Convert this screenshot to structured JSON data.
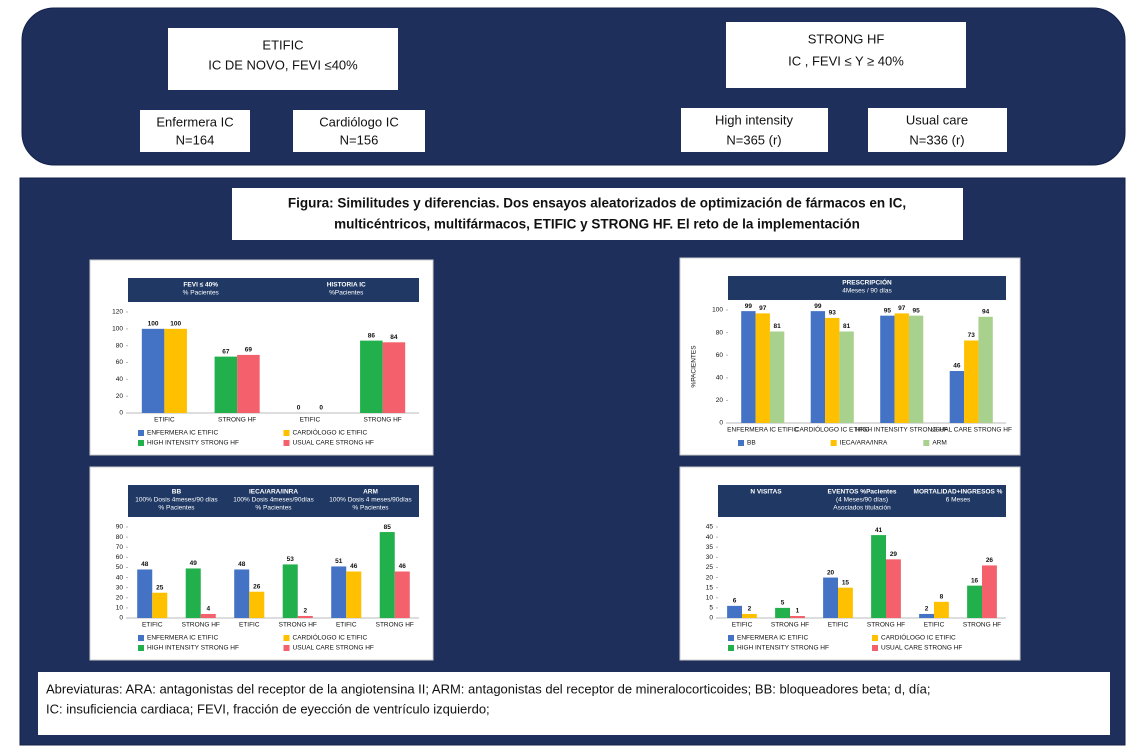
{
  "header": {
    "etific": {
      "title": "ETIFIC",
      "subtitle": "IC DE NOVO, FEVI ≤40%"
    },
    "etific_arms": [
      {
        "name": "Enfermera IC",
        "n": "N=164"
      },
      {
        "name": "Cardiólogo IC",
        "n": "N=156"
      }
    ],
    "strong": {
      "title": "STRONG HF",
      "subtitle": "IC , FEVI ≤ Y ≥ 40%"
    },
    "strong_arms": [
      {
        "name": "High intensity",
        "n": "N=365 (r)"
      },
      {
        "name": "Usual care",
        "n": "N=336 (r)"
      }
    ]
  },
  "caption": [
    "Figura: Similitudes y diferencias. Dos ensayos aleatorizados de optimización de fármacos en IC,",
    "multicéntricos, multifármacos, ETIFIC y STRONG HF.  El reto de la implementación"
  ],
  "chart_data": [
    {
      "type": "bar",
      "panels": [
        {
          "lines": [
            "FEVI ≤ 40%",
            "% Pacientes"
          ]
        },
        {
          "lines": [
            "HISTORIA IC",
            "%Pacientes"
          ]
        }
      ],
      "categories": [
        "ETIFIC",
        "STRONG HF",
        "ETIFIC",
        "STRONG HF"
      ],
      "series": [
        {
          "name": "ENFERMERA IC ETIFIC",
          "color": "#4472c4",
          "values": [
            100,
            null,
            0,
            null
          ]
        },
        {
          "name": "CARDIÓLOGO IC ETIFIC",
          "color": "#ffc000",
          "values": [
            100,
            null,
            0,
            null
          ]
        },
        {
          "name": "HIGH INTENSITY STRONG HF",
          "color": "#22b04c",
          "values": [
            null,
            67,
            null,
            86
          ]
        },
        {
          "name": "USUAL CARE STRONG HF",
          "color": "#f4606c",
          "values": [
            null,
            69,
            null,
            84
          ]
        }
      ],
      "ylim": [
        0,
        120
      ],
      "yticks": [
        0,
        20,
        40,
        60,
        80,
        100,
        120
      ]
    },
    {
      "type": "bar",
      "panels": [
        {
          "lines": [
            "PRESCRIPCIÓN",
            "4Meses / 90 días"
          ]
        }
      ],
      "y_label": "%PACIENTES",
      "categories": [
        "ENFERMERA IC ETIFIC",
        "CARDIÓLOGO IC ETIFIC",
        "HIGH INTENSITY STRONG HF",
        "USUAL CARE STRONG HF"
      ],
      "series": [
        {
          "name": "BB",
          "color": "#4472c4",
          "values": [
            99,
            99,
            95,
            46
          ]
        },
        {
          "name": "IECA/ARA/INRA",
          "color": "#ffc000",
          "values": [
            97,
            93,
            97,
            73
          ]
        },
        {
          "name": "ARM",
          "color": "#a9d18e",
          "values": [
            81,
            81,
            95,
            94
          ]
        }
      ],
      "ylim": [
        0,
        100
      ],
      "yticks": [
        0,
        20,
        40,
        60,
        80,
        100
      ]
    },
    {
      "type": "bar",
      "panels": [
        {
          "lines": [
            "BB",
            "100% Dosis 4meses/90 días",
            "% Pacientes"
          ]
        },
        {
          "lines": [
            "IECA/ARA/INRA",
            "100% Dosis 4meses/90días",
            "% Pacientes"
          ]
        },
        {
          "lines": [
            "ARM",
            "100% Dosis 4 meses/90días",
            "% Pacientes"
          ]
        }
      ],
      "categories": [
        "ETIFIC",
        "STRONG HF",
        "ETIFIC",
        "STRONG HF",
        "ETIFIC",
        "STRONG HF"
      ],
      "series": [
        {
          "name": "ENFERMERA IC ETIFIC",
          "color": "#4472c4",
          "values": [
            48,
            null,
            48,
            null,
            51,
            null
          ]
        },
        {
          "name": "CARDIÓLOGO IC ETIFIC",
          "color": "#ffc000",
          "values": [
            25,
            null,
            26,
            null,
            46,
            null
          ]
        },
        {
          "name": "HIGH INTENSITY STRONG HF",
          "color": "#22b04c",
          "values": [
            null,
            49,
            null,
            53,
            null,
            85
          ]
        },
        {
          "name": "USUAL CARE STRONG HF",
          "color": "#f4606c",
          "values": [
            null,
            4,
            null,
            2,
            null,
            46
          ]
        }
      ],
      "ylim": [
        0,
        90
      ],
      "yticks": [
        0,
        10,
        20,
        30,
        40,
        50,
        60,
        70,
        80,
        90
      ]
    },
    {
      "type": "bar",
      "panels": [
        {
          "lines": [
            "N VISITAS"
          ]
        },
        {
          "lines": [
            "EVENTOS %Pacientes",
            "(4 Meses/90 días)",
            "Asociados titulación"
          ]
        },
        {
          "lines": [
            "MORTALIDAD+INGRESOS %",
            "6 Meses"
          ]
        }
      ],
      "categories": [
        "ETIFIC",
        "STRONG HF",
        "ETIFIC",
        "STRONG HF",
        "ETIFIC",
        "STRONG HF"
      ],
      "series": [
        {
          "name": "ENFERMERA IC ETIFIC",
          "color": "#4472c4",
          "values": [
            6,
            null,
            20,
            null,
            2,
            null
          ]
        },
        {
          "name": "CARDIÓLOGO IC ETIFIC",
          "color": "#ffc000",
          "values": [
            2,
            null,
            15,
            null,
            8,
            null
          ]
        },
        {
          "name": "HIGH INTENSITY STRONG HF",
          "color": "#22b04c",
          "values": [
            null,
            5,
            null,
            41,
            null,
            16
          ]
        },
        {
          "name": "USUAL CARE STRONG HF",
          "color": "#f4606c",
          "values": [
            null,
            1,
            null,
            29,
            null,
            26
          ]
        }
      ],
      "ylim": [
        0,
        45
      ],
      "yticks": [
        0,
        5,
        10,
        15,
        20,
        25,
        30,
        35,
        40,
        45
      ]
    }
  ],
  "footer": [
    "Abreviaturas: ARA: antagonistas del receptor de la angiotensina II; ARM: antagonistas del receptor de mineralocorticoides; BB: bloqueadores beta; d, día;",
    "IC: insuficiencia cardiaca; FEVI, fracción de eyección de ventrículo izquierdo;"
  ]
}
